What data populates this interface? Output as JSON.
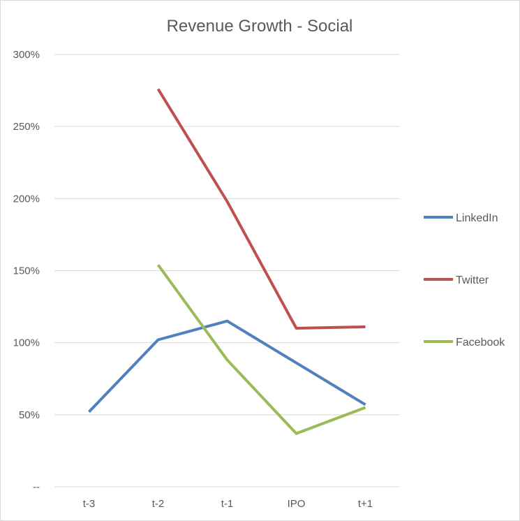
{
  "chart_data": {
    "type": "line",
    "title": "Revenue Growth - Social",
    "categories": [
      "t-3",
      "t-2",
      "t-1",
      "IPO",
      "t+1"
    ],
    "y_tick_labels": [
      "--",
      "50%",
      "100%",
      "150%",
      "200%",
      "250%",
      "300%"
    ],
    "ylim": [
      0,
      300
    ],
    "grid": true,
    "legend_position": "right",
    "series": [
      {
        "name": "LinkedIn",
        "color": "#4f81bd",
        "values": [
          52,
          102,
          115,
          86,
          57
        ]
      },
      {
        "name": "Twitter",
        "color": "#c0504d",
        "values": [
          null,
          276,
          198,
          110,
          111
        ]
      },
      {
        "name": "Facebook",
        "color": "#9bbb59",
        "values": [
          null,
          154,
          88,
          37,
          55
        ]
      }
    ]
  }
}
